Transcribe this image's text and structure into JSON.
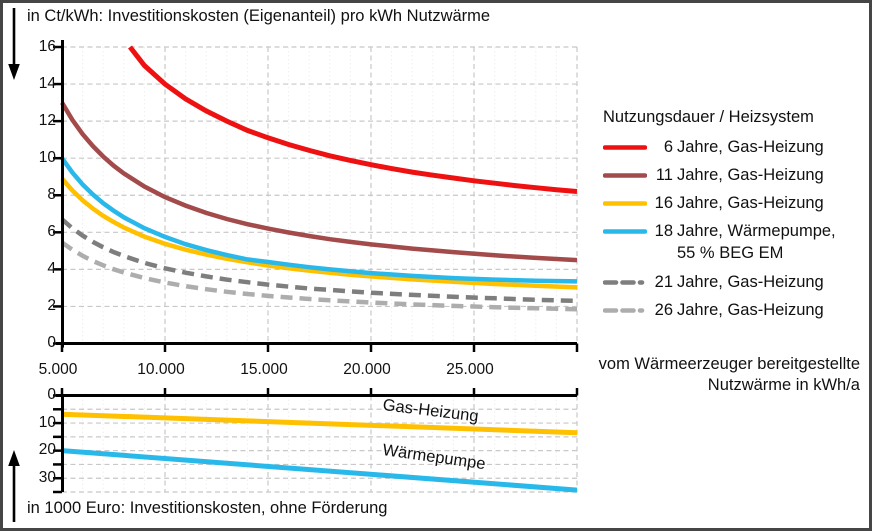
{
  "titles": {
    "top": "in Ct/kWh: Investitionskosten (Eigenanteil) pro kWh Nutzwärme",
    "bottom": "in 1000 Euro: Investitionskosten, ohne Förderung"
  },
  "axis": {
    "x_label_line1": "vom Wärmeerzeuger bereitgestellte",
    "x_label_line2": "Nutzwärme in kWh/a"
  },
  "line_labels": {
    "gas": "Gas-Heizung",
    "wp": "Wärmepumpe"
  },
  "legend": {
    "title": "Nutzungsdauer / Heizsystem",
    "entries": [
      {
        "num": "6",
        "label": "Jahre, Gas-Heizung",
        "label2": "",
        "color": "#EE1111",
        "dashed": false,
        "gap": false
      },
      {
        "num": "11",
        "label": "Jahre, Gas-Heizung",
        "label2": "",
        "color": "#A34A4A",
        "dashed": false,
        "gap": false
      },
      {
        "num": "16",
        "label": "Jahre, Gas-Heizung",
        "label2": "",
        "color": "#FFC000",
        "dashed": false,
        "gap": false
      },
      {
        "num": "18",
        "label": "Jahre, Wärmepumpe,",
        "label2": "55 % BEG EM",
        "color": "#29B8EA",
        "dashed": false,
        "gap": false
      },
      {
        "num": "21",
        "label": "Jahre, Gas-Heizung",
        "label2": "",
        "color": "#7E7E7E",
        "dashed": true,
        "gap": true
      },
      {
        "num": "26",
        "label": "Jahre, Gas-Heizung",
        "label2": "",
        "color": "#ADADAD",
        "dashed": true,
        "gap": false
      }
    ]
  },
  "colors": {
    "red": "#EE1111",
    "brown": "#A34A4A",
    "orange": "#FFC000",
    "blue": "#29B8EA",
    "dark_gray": "#7E7E7E",
    "light_gray": "#ADADAD",
    "axis": "#000000",
    "grid_major": "#C8C8C8",
    "grid_minor": "#EFEFEF",
    "frame": "#454545"
  },
  "chart_data": [
    {
      "type": "line",
      "title": "in Ct/kWh: Investitionskosten (Eigenanteil) pro kWh Nutzwärme",
      "xlabel": "vom Wärmeerzeuger bereitgestellte Nutzwärme in kWh/a",
      "ylabel": "Ct/kWh",
      "x_range": [
        5000,
        30000
      ],
      "y_range": [
        0,
        16
      ],
      "x_ticks": [
        5000,
        10000,
        15000,
        20000,
        25000
      ],
      "x_tick_labels": [
        "5.000",
        "10.000",
        "15.000",
        "20.000",
        "25.000"
      ],
      "y_ticks": [
        0,
        2,
        4,
        6,
        8,
        10,
        12,
        14,
        16
      ],
      "y_tick_labels": [
        "0",
        "2",
        "4",
        "6",
        "8",
        "10",
        "12",
        "14",
        "16"
      ],
      "grid": "dashed horizontal every 2, dashed vertical every 5000, faint vertical every 1000",
      "legend_position": "right",
      "legend_title": "Nutzungsdauer / Heizsystem",
      "series": [
        {
          "name": "6 Jahre, Gas-Heizung",
          "color": "#EE1111",
          "dashed": false,
          "width": 5,
          "points": [
            [
              8300,
              16
            ],
            [
              9000,
              15.0
            ],
            [
              10000,
              14.0
            ],
            [
              11000,
              13.2
            ],
            [
              12000,
              12.55
            ],
            [
              13000,
              12.0
            ],
            [
              14000,
              11.5
            ],
            [
              15000,
              11.1
            ],
            [
              16000,
              10.74
            ],
            [
              17000,
              10.42
            ],
            [
              18000,
              10.13
            ],
            [
              19000,
              9.88
            ],
            [
              20000,
              9.65
            ],
            [
              21000,
              9.44
            ],
            [
              22000,
              9.25
            ],
            [
              23000,
              9.08
            ],
            [
              24000,
              8.93
            ],
            [
              25000,
              8.78
            ],
            [
              26000,
              8.65
            ],
            [
              27000,
              8.52
            ],
            [
              28000,
              8.41
            ],
            [
              29000,
              8.3
            ],
            [
              30000,
              8.2
            ]
          ]
        },
        {
          "name": "11 Jahre, Gas-Heizung",
          "color": "#A34A4A",
          "dashed": false,
          "width": 4.5,
          "points": [
            [
              5000,
              13.0
            ],
            [
              5500,
              12.07
            ],
            [
              6000,
              11.3
            ],
            [
              6500,
              10.65
            ],
            [
              7000,
              10.09
            ],
            [
              7500,
              9.6
            ],
            [
              8000,
              9.18
            ],
            [
              9000,
              8.47
            ],
            [
              10000,
              7.9
            ],
            [
              11000,
              7.44
            ],
            [
              12000,
              7.05
            ],
            [
              13000,
              6.72
            ],
            [
              14000,
              6.44
            ],
            [
              15000,
              6.2
            ],
            [
              16000,
              5.99
            ],
            [
              17000,
              5.8
            ],
            [
              18000,
              5.63
            ],
            [
              19000,
              5.48
            ],
            [
              20000,
              5.35
            ],
            [
              22000,
              5.12
            ],
            [
              24000,
              4.93
            ],
            [
              26000,
              4.76
            ],
            [
              28000,
              4.62
            ],
            [
              30000,
              4.5
            ]
          ]
        },
        {
          "name": "16 Jahre, Gas-Heizung",
          "color": "#FFC000",
          "dashed": false,
          "width": 4.5,
          "points": [
            [
              5000,
              8.9
            ],
            [
              5500,
              8.26
            ],
            [
              6000,
              7.73
            ],
            [
              6500,
              7.28
            ],
            [
              7000,
              6.89
            ],
            [
              7500,
              6.56
            ],
            [
              8000,
              6.26
            ],
            [
              9000,
              5.77
            ],
            [
              10000,
              5.38
            ],
            [
              11000,
              5.06
            ],
            [
              12000,
              4.8
            ],
            [
              13000,
              4.57
            ],
            [
              14000,
              4.38
            ],
            [
              15000,
              4.21
            ],
            [
              16000,
              4.06
            ],
            [
              17000,
              3.93
            ],
            [
              18000,
              3.82
            ],
            [
              19000,
              3.71
            ],
            [
              20000,
              3.62
            ],
            [
              22000,
              3.46
            ],
            [
              24000,
              3.33
            ],
            [
              26000,
              3.21
            ],
            [
              28000,
              3.12
            ],
            [
              30000,
              3.03
            ]
          ]
        },
        {
          "name": "18 Jahre, Wärmepumpe, 55 % BEG EM",
          "color": "#29B8EA",
          "dashed": false,
          "width": 4.5,
          "points": [
            [
              5000,
              10.0
            ],
            [
              5500,
              9.23
            ],
            [
              6000,
              8.58
            ],
            [
              6500,
              8.04
            ],
            [
              7000,
              7.57
            ],
            [
              7500,
              7.17
            ],
            [
              8000,
              6.81
            ],
            [
              9000,
              6.22
            ],
            [
              10000,
              5.75
            ],
            [
              11000,
              5.36
            ],
            [
              12000,
              5.04
            ],
            [
              13000,
              4.77
            ],
            [
              14000,
              4.54
            ],
            [
              15000,
              4.4
            ],
            [
              16000,
              4.25
            ],
            [
              17000,
              4.12
            ],
            [
              18000,
              4.0
            ],
            [
              19000,
              3.9
            ],
            [
              20000,
              3.8
            ],
            [
              22000,
              3.65
            ],
            [
              24000,
              3.53
            ],
            [
              26000,
              3.45
            ],
            [
              28000,
              3.39
            ],
            [
              30000,
              3.35
            ]
          ]
        },
        {
          "name": "21 Jahre, Gas-Heizung",
          "color": "#7E7E7E",
          "dashed": true,
          "width": 4.5,
          "points": [
            [
              5000,
              6.7
            ],
            [
              5500,
              6.22
            ],
            [
              6000,
              5.82
            ],
            [
              6500,
              5.48
            ],
            [
              7000,
              5.19
            ],
            [
              7500,
              4.94
            ],
            [
              8000,
              4.72
            ],
            [
              9000,
              4.35
            ],
            [
              10000,
              4.06
            ],
            [
              11000,
              3.82
            ],
            [
              12000,
              3.62
            ],
            [
              13000,
              3.45
            ],
            [
              14000,
              3.31
            ],
            [
              15000,
              3.18
            ],
            [
              16000,
              3.07
            ],
            [
              17000,
              2.97
            ],
            [
              18000,
              2.89
            ],
            [
              19000,
              2.81
            ],
            [
              20000,
              2.74
            ],
            [
              22000,
              2.62
            ],
            [
              24000,
              2.52
            ],
            [
              26000,
              2.44
            ],
            [
              28000,
              2.36
            ],
            [
              30000,
              2.3
            ]
          ]
        },
        {
          "name": "26 Jahre, Gas-Heizung",
          "color": "#ADADAD",
          "dashed": true,
          "width": 4.5,
          "points": [
            [
              5000,
              5.45
            ],
            [
              5500,
              5.06
            ],
            [
              6000,
              4.73
            ],
            [
              6500,
              4.45
            ],
            [
              7000,
              4.22
            ],
            [
              7500,
              4.01
            ],
            [
              8000,
              3.83
            ],
            [
              9000,
              3.53
            ],
            [
              10000,
              3.29
            ],
            [
              11000,
              3.09
            ],
            [
              12000,
              2.93
            ],
            [
              13000,
              2.79
            ],
            [
              14000,
              2.67
            ],
            [
              15000,
              2.57
            ],
            [
              16000,
              2.48
            ],
            [
              17000,
              2.4
            ],
            [
              18000,
              2.33
            ],
            [
              19000,
              2.27
            ],
            [
              20000,
              2.21
            ],
            [
              22000,
              2.11
            ],
            [
              24000,
              2.03
            ],
            [
              26000,
              1.96
            ],
            [
              28000,
              1.9
            ],
            [
              30000,
              1.85
            ]
          ]
        }
      ]
    },
    {
      "type": "line",
      "title": "in 1000 Euro: Investitionskosten, ohne Förderung",
      "x_range": [
        5000,
        30000
      ],
      "y_range": [
        0,
        35
      ],
      "y_inverted": true,
      "y_ticks": [
        0,
        10,
        20,
        30
      ],
      "y_tick_labels": [
        "0",
        "10",
        "20",
        "30"
      ],
      "grid": "dashed horizontal every 5, dashed vertical every 5000, faint vertical every 1000",
      "series": [
        {
          "name": "Gas-Heizung",
          "color": "#FFC000",
          "dashed": false,
          "width": 5,
          "points": [
            [
              5000,
              6.8
            ],
            [
              30000,
              13.5
            ]
          ]
        },
        {
          "name": "Wärmepumpe",
          "color": "#29B8EA",
          "dashed": false,
          "width": 5,
          "points": [
            [
              5000,
              20.0
            ],
            [
              30000,
              34.3
            ]
          ]
        }
      ]
    }
  ]
}
